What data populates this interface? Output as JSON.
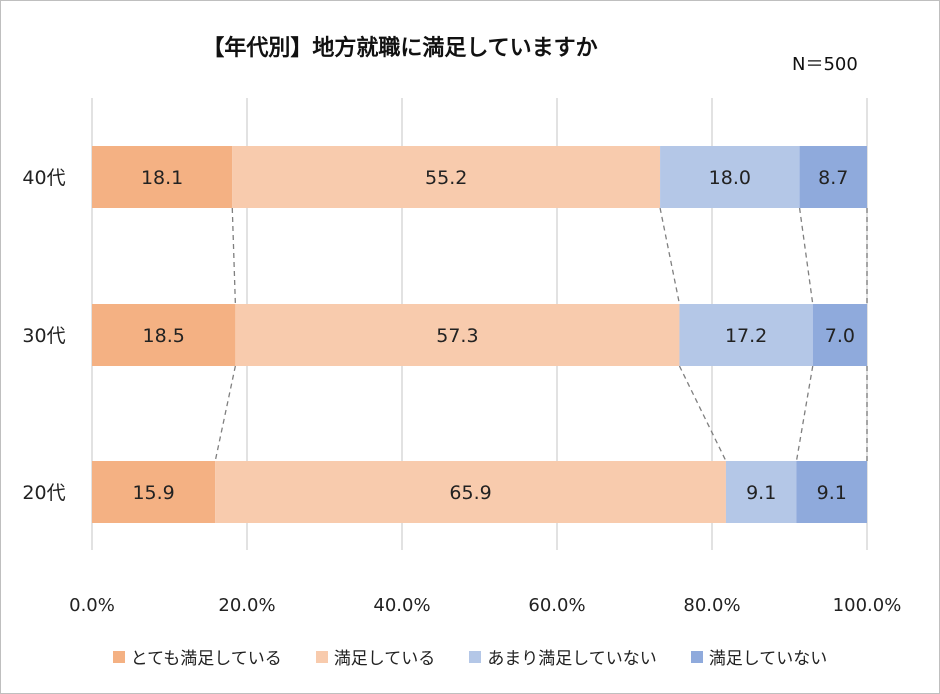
{
  "title": "【年代別】地方就職に満足していますか",
  "sample": "N＝500",
  "chart_data": {
    "type": "bar",
    "orientation": "horizontal",
    "stacked": "percent",
    "title": "【年代別】地方就職に満足していますか",
    "categories": [
      "40代",
      "30代",
      "20代"
    ],
    "series": [
      {
        "name": "とても満足している",
        "values": [
          18.1,
          18.5,
          15.9
        ],
        "color": "#f4b183"
      },
      {
        "name": "満足している",
        "values": [
          55.2,
          57.3,
          65.9
        ],
        "color": "#f8cbad"
      },
      {
        "name": "あまり満足していない",
        "values": [
          18.0,
          17.2,
          9.1
        ],
        "color": "#b4c7e7"
      },
      {
        "name": "満足していない",
        "values": [
          8.7,
          7.0,
          9.1
        ],
        "color": "#8faadc"
      }
    ],
    "x_ticks": [
      "0.0%",
      "20.0%",
      "40.0%",
      "60.0%",
      "80.0%",
      "100.0%"
    ],
    "xlim": [
      0,
      100
    ],
    "grid": true,
    "series_lines": true,
    "legend": "bottom"
  }
}
